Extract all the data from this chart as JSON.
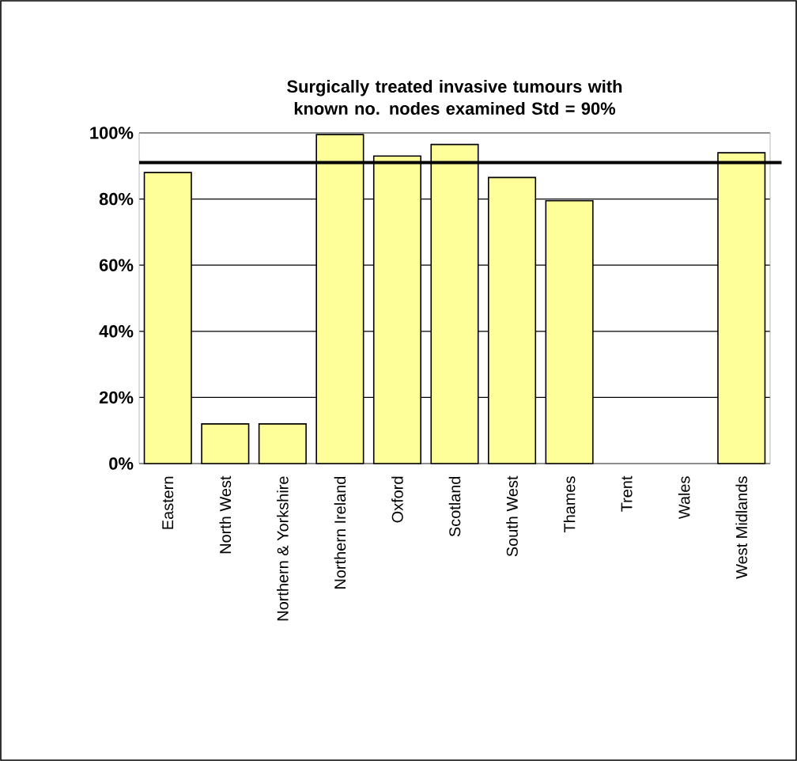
{
  "chart_data": {
    "type": "bar",
    "title": "Surgically treated invasive tumours with known no. nodes examined  Std = 90%",
    "categories": [
      "Eastern",
      "North West",
      "Northern & Yorkshire",
      "Northern Ireland",
      "Oxford",
      "Scotland",
      "South West",
      "Thames",
      "Trent",
      "Wales",
      "West Midlands"
    ],
    "values": [
      88,
      12,
      12,
      99.5,
      93,
      96.5,
      86.5,
      79.5,
      null,
      null,
      94
    ],
    "color": "#ffff99",
    "ylim": [
      0,
      100
    ],
    "yticks": [
      {
        "value": 0,
        "label": "0%"
      },
      {
        "value": 20,
        "label": "20%"
      },
      {
        "value": 40,
        "label": "40%"
      },
      {
        "value": 60,
        "label": "60%"
      },
      {
        "value": 80,
        "label": "80%"
      },
      {
        "value": 100,
        "label": "100%"
      }
    ],
    "grid": "y",
    "ref_lines": [
      {
        "axis": "y",
        "value": 91,
        "color": "#000000"
      }
    ]
  }
}
